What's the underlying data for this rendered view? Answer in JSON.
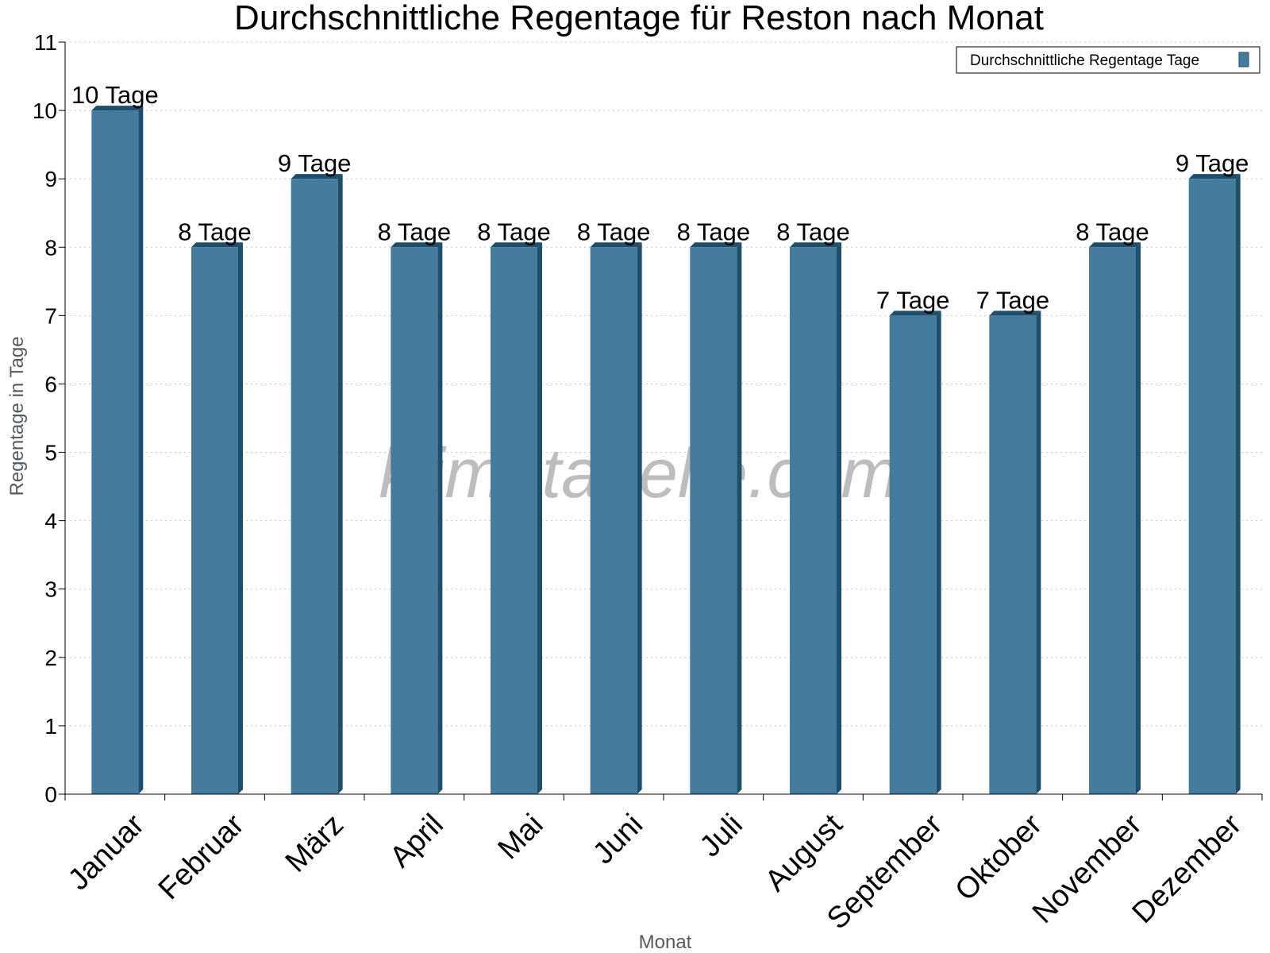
{
  "chart_data": {
    "type": "bar",
    "title": "Durchschnittliche Regentage für Reston nach Monat",
    "xlabel": "Monat",
    "ylabel": "Regentage in Tage",
    "categories": [
      "Januar",
      "Februar",
      "März",
      "April",
      "Mai",
      "Juni",
      "Juli",
      "August",
      "September",
      "Oktober",
      "November",
      "Dezember"
    ],
    "series": [
      {
        "name": "Durchschnittliche Regentage Tage",
        "values": [
          10,
          8,
          9,
          8,
          8,
          8,
          8,
          8,
          7,
          7,
          8,
          9
        ],
        "labels": [
          "10 Tage",
          "8 Tage",
          "9 Tage",
          "8 Tage",
          "8 Tage",
          "8 Tage",
          "8 Tage",
          "8 Tage",
          "7 Tage",
          "7 Tage",
          "8 Tage",
          "9 Tage"
        ]
      }
    ],
    "ylim": [
      0,
      11
    ],
    "yticks": [
      "0",
      "1",
      "2",
      "3",
      "4",
      "5",
      "6",
      "7",
      "8",
      "9",
      "10",
      "11"
    ],
    "grid": true,
    "legend_position": "top-right",
    "bar_color": "#457b9d",
    "bar_side_color": "#1d4e6b"
  },
  "watermark": "klimatabelle.com"
}
